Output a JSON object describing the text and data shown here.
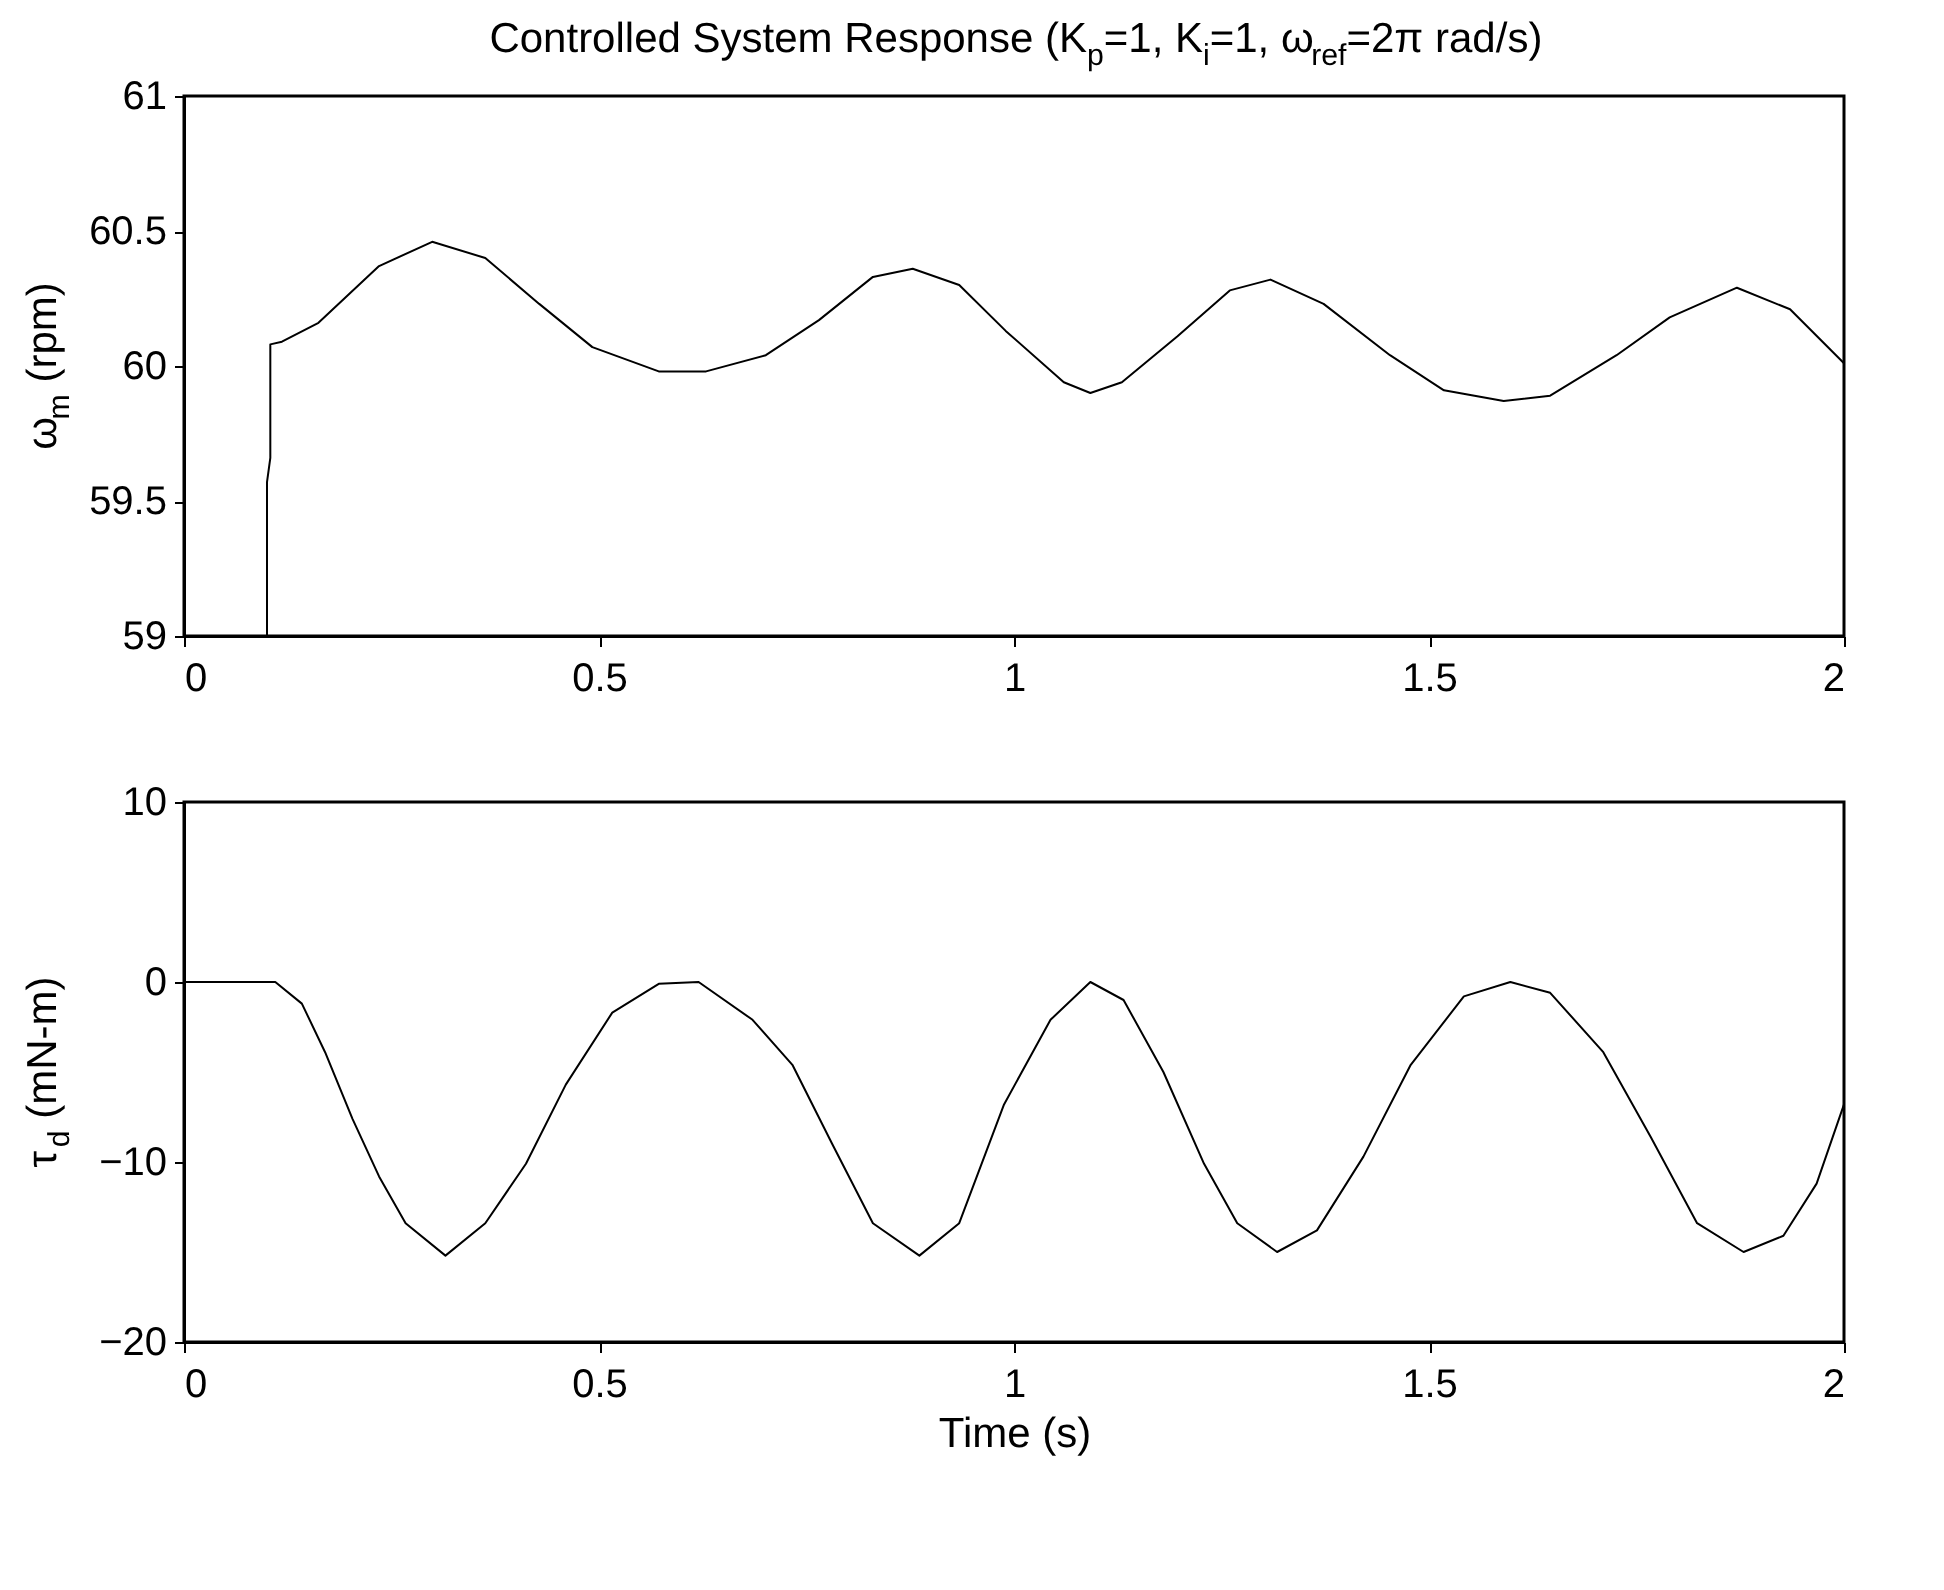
{
  "chart_data": [
    {
      "type": "line",
      "title": "Controlled System Response (K$_{p}$=1, K$_{i}$=1, ω$_{ref}$=2π rad/s)",
      "ylabel": "ω$_{m}$ (rpm)",
      "series": [
        {
          "color": "#000000",
          "x": [
            0.1,
            0.1,
            0.104,
            0.104,
            0.118,
            0.162,
            0.235,
            0.299,
            0.363,
            0.428,
            0.492,
            0.572,
            0.629,
            0.701,
            0.765,
            0.83,
            0.878,
            0.934,
            0.99,
            1.06,
            1.092,
            1.13,
            1.197,
            1.26,
            1.309,
            1.373,
            1.453,
            1.518,
            1.59,
            1.646,
            1.726,
            1.79,
            1.871,
            1.935,
            2.0
          ],
          "values": [
            59.0,
            59.57,
            59.66,
            60.08,
            60.09,
            60.16,
            60.37,
            60.46,
            60.4,
            60.23,
            60.07,
            59.98,
            59.98,
            60.04,
            60.17,
            60.33,
            60.36,
            60.3,
            60.13,
            59.94,
            59.9,
            59.94,
            60.11,
            60.28,
            60.32,
            60.23,
            60.04,
            59.91,
            59.87,
            59.89,
            60.04,
            60.18,
            60.29,
            60.21,
            60.01
          ]
        }
      ],
      "xlim": [
        0,
        2
      ],
      "xticks": [
        0,
        0.5,
        1,
        1.5,
        2
      ],
      "ylim": [
        59,
        61
      ],
      "yticks": [
        59,
        59.5,
        60,
        60.5,
        61
      ],
      "grid": false
    },
    {
      "type": "line",
      "xlabel": "Time (s)",
      "ylabel": "τ$_{d}$ (mN-m)",
      "series": [
        {
          "color": "#000000",
          "x": [
            0,
            0.11,
            0.142,
            0.17,
            0.203,
            0.235,
            0.267,
            0.315,
            0.363,
            0.412,
            0.46,
            0.516,
            0.572,
            0.62,
            0.685,
            0.733,
            0.781,
            0.83,
            0.886,
            0.934,
            0.988,
            1.044,
            1.092,
            1.132,
            1.18,
            1.229,
            1.269,
            1.317,
            1.365,
            1.421,
            1.478,
            1.542,
            1.598,
            1.646,
            1.71,
            1.767,
            1.823,
            1.879,
            1.927,
            1.967,
            2.0
          ],
          "values": [
            0,
            0,
            -1.2,
            -3.9,
            -7.6,
            -10.8,
            -13.4,
            -15.2,
            -13.4,
            -10.1,
            -5.7,
            -1.7,
            -0.1,
            0,
            -2.1,
            -4.6,
            -9.0,
            -13.4,
            -15.2,
            -13.4,
            -6.8,
            -2.1,
            0,
            -1.0,
            -5.0,
            -10.1,
            -13.4,
            -15.0,
            -13.8,
            -9.7,
            -4.6,
            -0.8,
            0,
            -0.6,
            -3.9,
            -8.6,
            -13.4,
            -15.0,
            -14.1,
            -11.2,
            -6.8
          ]
        }
      ],
      "xlim": [
        0,
        2
      ],
      "xticks": [
        0,
        0.5,
        1,
        1.5,
        2
      ],
      "ylim": [
        -20,
        10
      ],
      "yticks": [
        -20,
        -10,
        0,
        10
      ],
      "grid": false
    }
  ]
}
